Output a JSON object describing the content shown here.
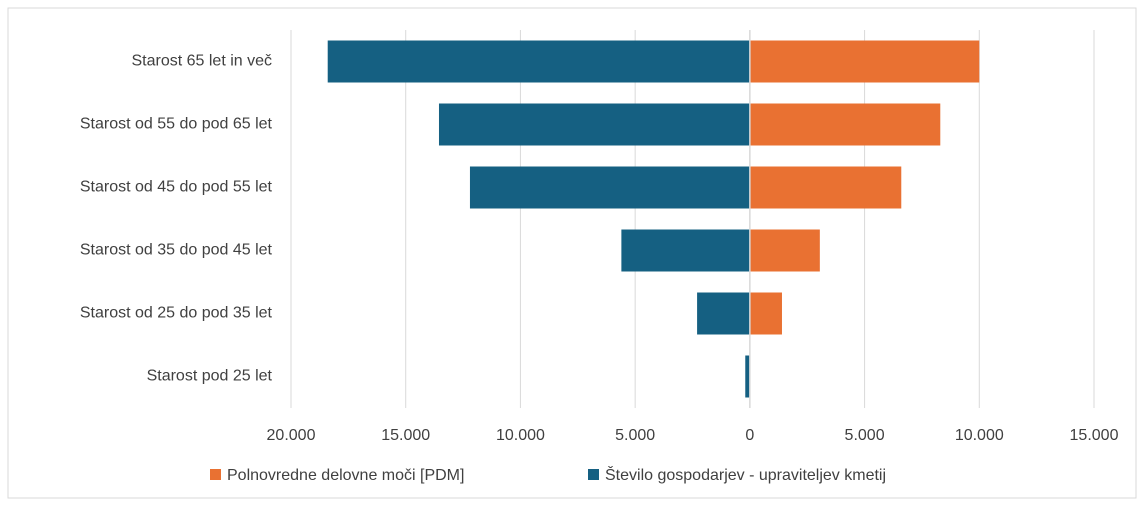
{
  "chart_data": {
    "type": "bar",
    "orientation": "horizontal",
    "categories": [
      "Starost 65 let in več",
      "Starost od 55 do pod 65 let",
      "Starost od 45 do pod 55 let",
      "Starost od 35 do pod 45 let",
      "Starost od 25 do pod 35 let",
      "Starost pod 25 let"
    ],
    "series": [
      {
        "name": "Polnovredne delovne moči [PDM]",
        "color": "#e97132",
        "values": [
          10000,
          8300,
          6600,
          3050,
          1400,
          0
        ]
      },
      {
        "name": "Število gospodarjev - upraviteljev kmetij",
        "color": "#156082",
        "values": [
          -18400,
          -13550,
          -12200,
          -5600,
          -2300,
          -200
        ]
      }
    ],
    "xlim": [
      -20000,
      15000
    ],
    "xticks": [
      {
        "value": -20000,
        "label": "20.000"
      },
      {
        "value": -15000,
        "label": "15.000"
      },
      {
        "value": -10000,
        "label": "10.000"
      },
      {
        "value": -5000,
        "label": "5.000"
      },
      0,
      {
        "value": 5000,
        "label": "5.000"
      },
      {
        "value": 10000,
        "label": "10.000"
      },
      {
        "value": 15000,
        "label": "15.000"
      }
    ],
    "grid": true,
    "legend": "bottom"
  }
}
